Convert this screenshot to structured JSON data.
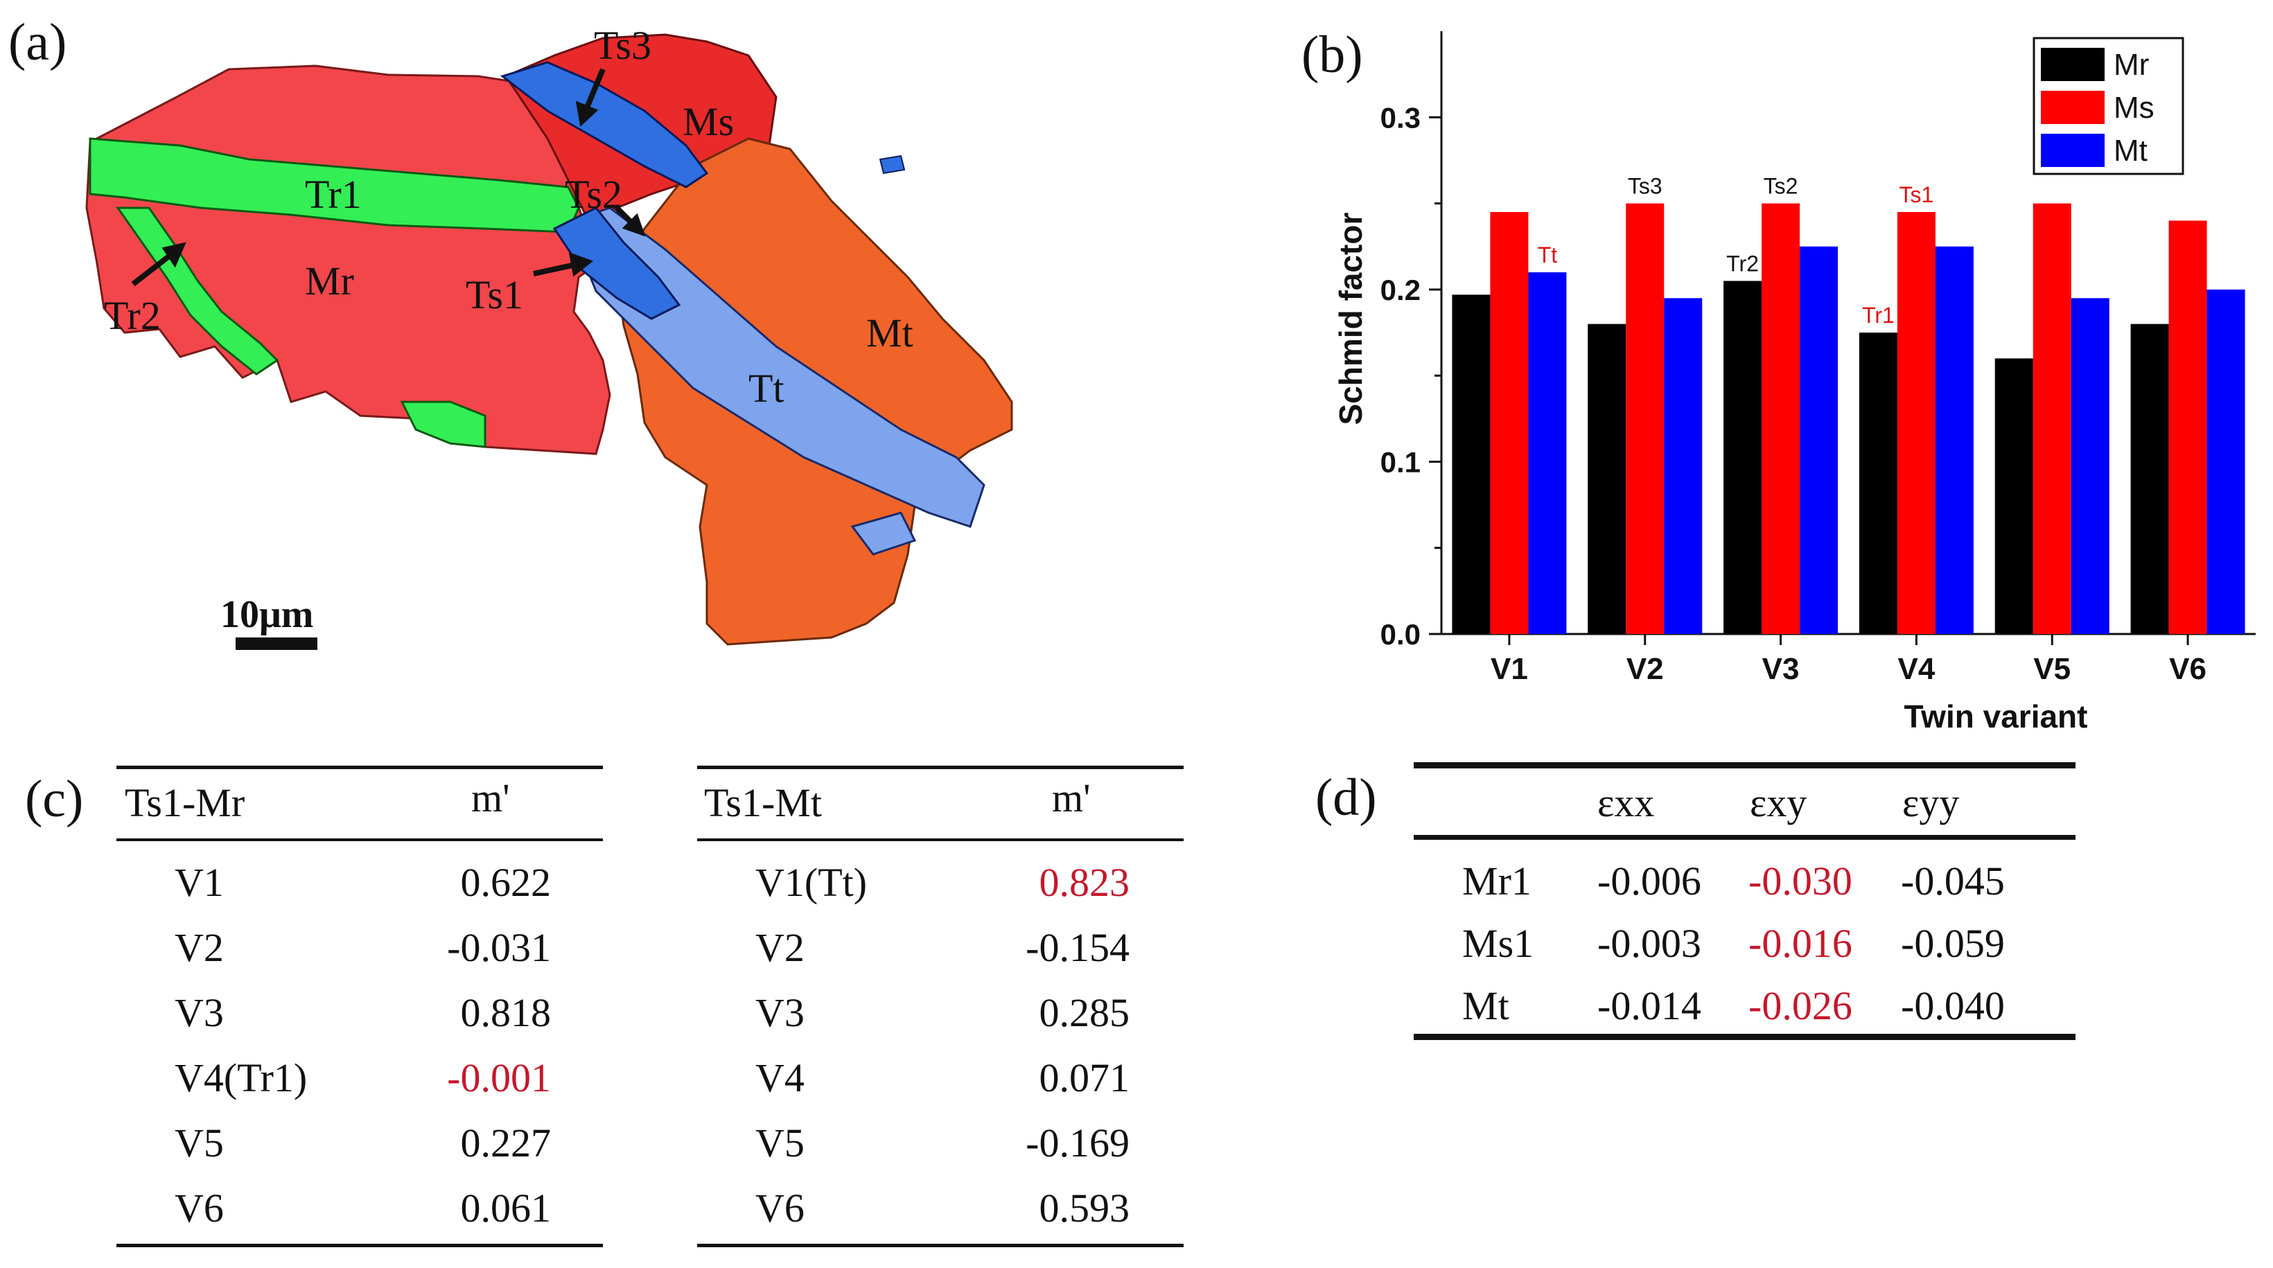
{
  "panels": {
    "a": "(a)",
    "b": "(b)",
    "c": "(c)",
    "d": "(d)"
  },
  "map": {
    "labels": {
      "Tr1": "Tr1",
      "Tr2": "Tr2",
      "Mr": "Mr",
      "Ts1": "Ts1",
      "Ts2": "Ts2",
      "Ts3": "Ts3",
      "Ms": "Ms",
      "Mt": "Mt",
      "Tt": "Tt"
    },
    "scale_bar": "10μm",
    "colors": {
      "Mr": "#f2464b",
      "Tr": "#33ee55",
      "Ms": "#e82a2a",
      "Ts": "#2f6fe0",
      "Mt": "#f0642a",
      "Tt": "#7fa4ee"
    }
  },
  "chart_data": {
    "type": "bar",
    "title": "",
    "xlabel": "Twin variant",
    "ylabel": "Schmid factor",
    "ylim": [
      0,
      0.35
    ],
    "yticks": [
      "0.0",
      "0.1",
      "0.2",
      "0.3"
    ],
    "categories": [
      "V1",
      "V2",
      "V3",
      "V4",
      "V5",
      "V6"
    ],
    "legend_position": "top-right",
    "series": [
      {
        "name": "Mr",
        "color": "#000000",
        "values": [
          0.197,
          0.18,
          0.205,
          0.175,
          0.16,
          0.18
        ]
      },
      {
        "name": "Ms",
        "color": "#ff0000",
        "values": [
          0.245,
          0.25,
          0.25,
          0.245,
          0.25,
          0.24
        ]
      },
      {
        "name": "Mt",
        "color": "#0000ff",
        "values": [
          0.21,
          0.195,
          0.225,
          0.225,
          0.195,
          0.2
        ]
      }
    ],
    "annotations": [
      {
        "text": "Tt",
        "category": "V1",
        "series": "Mt",
        "color": "#e01010"
      },
      {
        "text": "Ts3",
        "category": "V2",
        "series": "Ms",
        "color": "#111111"
      },
      {
        "text": "Tr2",
        "category": "V3",
        "series": "Mr",
        "color": "#111111"
      },
      {
        "text": "Ts2",
        "category": "V3",
        "series": "Ms",
        "color": "#111111"
      },
      {
        "text": "Tr1",
        "category": "V4",
        "series": "Mr",
        "color": "#e01010"
      },
      {
        "text": "Ts1",
        "category": "V4",
        "series": "Ms",
        "color": "#e01010"
      }
    ]
  },
  "table_c1": {
    "header": [
      "Ts1-Mr",
      "m'"
    ],
    "rows": [
      {
        "variant": "V1",
        "value": "0.622",
        "highlight": false
      },
      {
        "variant": "V2",
        "value": "-0.031",
        "highlight": false
      },
      {
        "variant": "V3",
        "value": "0.818",
        "highlight": false
      },
      {
        "variant": "V4(Tr1)",
        "value": "-0.001",
        "highlight": true
      },
      {
        "variant": "V5",
        "value": "0.227",
        "highlight": false
      },
      {
        "variant": "V6",
        "value": "0.061",
        "highlight": false
      }
    ]
  },
  "table_c2": {
    "header": [
      "Ts1-Mt",
      "m'"
    ],
    "rows": [
      {
        "variant": "V1(Tt)",
        "value": "0.823",
        "highlight": true
      },
      {
        "variant": "V2",
        "value": "-0.154",
        "highlight": false
      },
      {
        "variant": "V3",
        "value": "0.285",
        "highlight": false
      },
      {
        "variant": "V4",
        "value": "0.071",
        "highlight": false
      },
      {
        "variant": "V5",
        "value": "-0.169",
        "highlight": false
      },
      {
        "variant": "V6",
        "value": "0.593",
        "highlight": false
      }
    ]
  },
  "table_d": {
    "header": [
      "εxx",
      "εxy",
      "εyy"
    ],
    "rows": [
      {
        "name": "Mr1",
        "exx": "-0.006",
        "exy": "-0.030",
        "eyy": "-0.045"
      },
      {
        "name": "Ms1",
        "exx": "-0.003",
        "exy": "-0.016",
        "eyy": "-0.059"
      },
      {
        "name": "Mt",
        "exx": "-0.014",
        "exy": "-0.026",
        "eyy": "-0.040"
      }
    ]
  }
}
